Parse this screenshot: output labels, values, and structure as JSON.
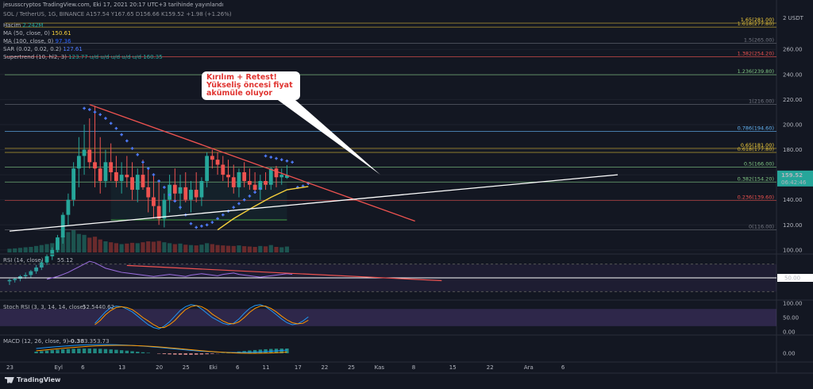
{
  "header": {
    "title": "jesusscryptos TradingView.com, Eki 17, 2021 20:17 UTC+3 tarihinde yayınlandı",
    "symbol_line": "SOL / TetherUS, 1G, BINANCE A157.54 Y167.65 D156.66 K159.52 +1.98 (+1.26%)"
  },
  "indicators": [
    {
      "label": "Hacim",
      "value": "2.242M",
      "color": "#26a69a"
    },
    {
      "label": "MA (50, close, 0)",
      "value": "150.61",
      "color": "#f7d13c"
    },
    {
      "label": "MA (100, close, 0)",
      "value": "97.36",
      "color": "#2962ff"
    },
    {
      "label": "SAR (0.02, 0.02, 0.2)",
      "value": "127.61",
      "color": "#4f7cff"
    },
    {
      "label": "Supertrend (10, hl2, 3)",
      "value": "123.77 u/d u/d u/d u/d u/d 160.35",
      "color": "#26a69a"
    }
  ],
  "callout": {
    "lines": [
      "Kırılım + Retest!",
      "Yükseliş öncesi fiyat",
      "akümüle oluyor"
    ]
  },
  "footer": {
    "brand": "TradingView"
  },
  "colors": {
    "bull": "#26a69a",
    "bear": "#ef5350",
    "background": "#131722",
    "trend_red": "#ef5350",
    "trend_white": "#ffffff",
    "ma50": "#f7d13c",
    "sar": "#4f7cff",
    "fib_gold": "#d4b537"
  },
  "chart_data": {
    "type": "candlestick",
    "price_axis": {
      "ticks": [
        100,
        120,
        140,
        160,
        180,
        200,
        220,
        240,
        260
      ],
      "ylim": [
        98,
        288
      ],
      "top_label": "2 USDT"
    },
    "last_price": {
      "value": "159.52",
      "countdown": "06:42:46"
    },
    "x_ticks": [
      {
        "label": "23",
        "i": 0
      },
      {
        "label": "Eyl",
        "i": 9
      },
      {
        "label": "6",
        "i": 14
      },
      {
        "label": "13",
        "i": 21
      },
      {
        "label": "20",
        "i": 28
      },
      {
        "label": "25",
        "i": 33
      },
      {
        "label": "Eki",
        "i": 38
      },
      {
        "label": "6",
        "i": 43
      },
      {
        "label": "11",
        "i": 48
      },
      {
        "label": "17",
        "i": 54
      },
      {
        "label": "22",
        "i": 59
      },
      {
        "label": "25",
        "i": 64
      },
      {
        "label": "Kas",
        "i": 69
      },
      {
        "label": "8",
        "i": 76
      },
      {
        "label": "15",
        "i": 83
      },
      {
        "label": "22",
        "i": 90
      },
      {
        "label": "Ara",
        "i": 97
      },
      {
        "label": "6",
        "i": 104
      }
    ],
    "fibonacci": [
      {
        "level": "1.65",
        "price": 281,
        "label": "1.65(281.00)",
        "color": "#f7d13c"
      },
      {
        "level": "1.618",
        "price": 277.8,
        "label": "1.618(277.80)",
        "color": "#d4b537"
      },
      {
        "level": "1.5",
        "price": 265,
        "label": "1.5(265.00)",
        "color": "#787b86"
      },
      {
        "level": "1.382",
        "price": 254.2,
        "label": "1.382(254.20)",
        "color": "#ef5350"
      },
      {
        "level": "1.236",
        "price": 239.8,
        "label": "1.236(239.80)",
        "color": "#81c784"
      },
      {
        "level": "1",
        "price": 216,
        "label": "1(216.00)",
        "color": "#787b86"
      },
      {
        "level": "0.786",
        "price": 194.6,
        "label": "0.786(194.60)",
        "color": "#64b5f6"
      },
      {
        "level": "0.65",
        "price": 181,
        "label": "0.65(181.00)",
        "color": "#f7d13c"
      },
      {
        "level": "0.618",
        "price": 177.8,
        "label": "0.618(177.80)",
        "color": "#d4b537"
      },
      {
        "level": "0.5",
        "price": 166,
        "label": "0.5(166.00)",
        "color": "#81c784"
      },
      {
        "level": "0.382",
        "price": 154.2,
        "label": "0.382(154.20)",
        "color": "#81c784"
      },
      {
        "level": "0.236",
        "price": 139.6,
        "label": "0.236(139.60)",
        "color": "#ef5350"
      },
      {
        "level": "0",
        "price": 116,
        "label": "0(116.00)",
        "color": "#787b86"
      }
    ],
    "candles": [
      [
        75,
        77,
        72,
        76
      ],
      [
        76,
        78,
        74,
        77
      ],
      [
        77,
        80,
        75,
        79
      ],
      [
        79,
        82,
        77,
        80
      ],
      [
        80,
        84,
        78,
        83
      ],
      [
        83,
        88,
        81,
        86
      ],
      [
        86,
        92,
        84,
        90
      ],
      [
        90,
        97,
        88,
        95
      ],
      [
        95,
        102,
        92,
        100
      ],
      [
        100,
        112,
        98,
        110
      ],
      [
        110,
        130,
        105,
        128
      ],
      [
        128,
        145,
        120,
        140
      ],
      [
        140,
        170,
        135,
        165
      ],
      [
        165,
        190,
        150,
        175
      ],
      [
        175,
        200,
        160,
        180
      ],
      [
        180,
        205,
        165,
        170
      ],
      [
        170,
        215,
        150,
        165
      ],
      [
        165,
        190,
        145,
        155
      ],
      [
        155,
        180,
        150,
        170
      ],
      [
        170,
        185,
        155,
        162
      ],
      [
        162,
        175,
        150,
        155
      ],
      [
        155,
        170,
        145,
        160
      ],
      [
        160,
        175,
        150,
        158
      ],
      [
        158,
        170,
        140,
        148
      ],
      [
        148,
        165,
        138,
        160
      ],
      [
        160,
        172,
        148,
        150
      ],
      [
        150,
        165,
        130,
        142
      ],
      [
        142,
        160,
        125,
        135
      ],
      [
        135,
        155,
        120,
        125
      ],
      [
        125,
        145,
        118,
        140
      ],
      [
        140,
        160,
        130,
        152
      ],
      [
        152,
        165,
        140,
        145
      ],
      [
        145,
        160,
        132,
        150
      ],
      [
        150,
        162,
        138,
        140
      ],
      [
        140,
        155,
        130,
        148
      ],
      [
        148,
        162,
        138,
        142
      ],
      [
        142,
        158,
        135,
        155
      ],
      [
        155,
        178,
        150,
        175
      ],
      [
        175,
        180,
        165,
        172
      ],
      [
        172,
        178,
        160,
        168
      ],
      [
        168,
        175,
        155,
        160
      ],
      [
        160,
        172,
        150,
        158
      ],
      [
        158,
        168,
        145,
        150
      ],
      [
        150,
        165,
        142,
        162
      ],
      [
        162,
        170,
        150,
        155
      ],
      [
        155,
        165,
        148,
        152
      ],
      [
        152,
        162,
        145,
        148
      ],
      [
        148,
        160,
        140,
        155
      ],
      [
        155,
        162,
        148,
        152
      ],
      [
        152,
        166,
        148,
        165
      ],
      [
        165,
        167,
        150,
        158
      ],
      [
        158,
        165,
        152,
        160
      ],
      [
        157.5,
        167.65,
        156.66,
        159.52
      ]
    ],
    "ma50": [
      [
        39,
        116
      ],
      [
        42,
        125
      ],
      [
        46,
        135
      ],
      [
        49,
        142
      ],
      [
        52,
        148
      ],
      [
        56,
        150.61
      ]
    ],
    "sar_points": [
      [
        14,
        213
      ],
      [
        15,
        212
      ],
      [
        16,
        210
      ],
      [
        17,
        208
      ],
      [
        18,
        205
      ],
      [
        19,
        201
      ],
      [
        20,
        197
      ],
      [
        21,
        192
      ],
      [
        22,
        187
      ],
      [
        23,
        181
      ],
      [
        24,
        176
      ],
      [
        25,
        170
      ],
      [
        26,
        165
      ],
      [
        27,
        160
      ],
      [
        28,
        155
      ],
      [
        29,
        150
      ],
      [
        30,
        144
      ],
      [
        31,
        139
      ],
      [
        32,
        134
      ],
      [
        33,
        128
      ],
      [
        34,
        121
      ],
      [
        35,
        118
      ],
      [
        36,
        119
      ],
      [
        37,
        120
      ],
      [
        38,
        122
      ],
      [
        39,
        125
      ],
      [
        40,
        128
      ],
      [
        41,
        131
      ],
      [
        42,
        134
      ],
      [
        43,
        137
      ],
      [
        44,
        140
      ],
      [
        45,
        143
      ],
      [
        46,
        146
      ],
      [
        47,
        149
      ],
      [
        48,
        175
      ],
      [
        49,
        174
      ],
      [
        50,
        173
      ],
      [
        51,
        172
      ],
      [
        52,
        171
      ],
      [
        53,
        170
      ],
      [
        54,
        150
      ],
      [
        55,
        151
      ],
      [
        56,
        153
      ]
    ],
    "trendlines": [
      {
        "name": "descending",
        "color": "#ef5350",
        "from": [
          15,
          216
        ],
        "to": [
          76,
          123
        ]
      },
      {
        "name": "ascending",
        "color": "#ffffff",
        "from": [
          0,
          115
        ],
        "to": [
          114,
          160
        ]
      }
    ],
    "rsi": {
      "label": "RSI (14, close)",
      "value": "55.12",
      "ticks": [
        "50.00"
      ],
      "values": [
        48,
        50,
        52,
        55,
        58,
        62,
        66,
        70,
        74,
        72,
        68,
        64,
        62,
        60,
        58,
        57,
        56,
        55,
        54,
        53,
        52,
        53,
        54,
        55,
        54,
        53,
        52,
        54,
        55,
        56,
        55,
        54,
        53,
        55,
        56,
        57,
        55,
        54,
        53,
        52,
        51,
        52,
        53,
        54,
        55,
        56,
        55.12
      ]
    },
    "stoch_rsi": {
      "label": "Stoch RSI (3, 3, 14, 14, close)",
      "k": "52.54",
      "d": "40.62",
      "ticks": [
        "100.00",
        "50.00",
        "0.00"
      ],
      "k_values": [
        30,
        50,
        70,
        85,
        90,
        88,
        80,
        70,
        55,
        40,
        25,
        15,
        10,
        20,
        35,
        55,
        75,
        88,
        95,
        92,
        80,
        65,
        50,
        40,
        30,
        25,
        30,
        45,
        65,
        82,
        92,
        95,
        88,
        75,
        60,
        45,
        32,
        25,
        28,
        38,
        52.54
      ],
      "d_values": [
        25,
        40,
        60,
        75,
        85,
        88,
        85,
        78,
        65,
        50,
        38,
        25,
        15,
        15,
        25,
        40,
        60,
        78,
        88,
        92,
        88,
        78,
        62,
        50,
        38,
        30,
        28,
        35,
        50,
        68,
        82,
        90,
        90,
        82,
        70,
        55,
        42,
        32,
        28,
        30,
        40.62
      ]
    },
    "macd": {
      "label": "MACD (12, 26, close, 9)",
      "hist": "-0.38",
      "macd": "3.35",
      "signal": "3.73",
      "ticks": [
        "0.00"
      ]
    },
    "volume": [
      20,
      22,
      25,
      28,
      30,
      35,
      40,
      45,
      50,
      60,
      90,
      110,
      120,
      100,
      95,
      80,
      85,
      70,
      60,
      55,
      50,
      45,
      48,
      52,
      50,
      55,
      60,
      58,
      62,
      55,
      50,
      45,
      48,
      42,
      40,
      38,
      42,
      50,
      45,
      40,
      38,
      36,
      35,
      38,
      34,
      32,
      30,
      35,
      33,
      40,
      30,
      28,
      32
    ]
  }
}
